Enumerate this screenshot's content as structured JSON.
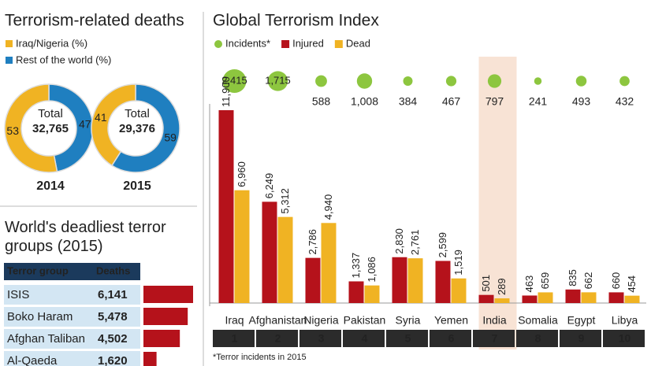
{
  "chart_data": [
    {
      "type": "donut",
      "title": "Terrorism-related deaths",
      "categories": [
        "Iraq/Nigeria (%)",
        "Rest of the world (%)"
      ],
      "colors": [
        "#f0b323",
        "#1f7fc0"
      ],
      "pies": [
        {
          "year": "2014",
          "total_text": "Total",
          "total": "32,765",
          "values": [
            53,
            47
          ]
        },
        {
          "year": "2015",
          "total_text": "Total",
          "total": "29,376",
          "values": [
            41,
            59
          ]
        }
      ]
    },
    {
      "type": "hbar",
      "title": "World's deadliest terror groups (2015)",
      "headers": [
        "Terror group",
        "Deaths"
      ],
      "categories": [
        "ISIS",
        "Boko Haram",
        "Afghan Taliban",
        "Al-Qaeda"
      ],
      "values": [
        6141,
        5478,
        4502,
        1620
      ],
      "value_labels": [
        "6,141",
        "5,478",
        "4,502",
        "1,620"
      ],
      "color": "#b5121b"
    },
    {
      "type": "index",
      "title": "Global Terrorism Index",
      "categories": [
        "Iraq",
        "Afghanistan",
        "Nigeria",
        "Pakistan",
        "Syria",
        "Yemen",
        "India",
        "Somalia",
        "Egypt",
        "Libya"
      ],
      "ranks": [
        1,
        2,
        3,
        4,
        5,
        6,
        7,
        8,
        9,
        10
      ],
      "highlight_index": 6,
      "series": [
        {
          "name": "Incidents*",
          "color": "#8dc63f",
          "values": [
            2415,
            1715,
            588,
            1008,
            384,
            467,
            797,
            241,
            493,
            432
          ],
          "value_labels": [
            "2,415",
            "1,715",
            "588",
            "1,008",
            "384",
            "467",
            "797",
            "241",
            "493",
            "432"
          ]
        },
        {
          "name": "Injured",
          "color": "#b5121b",
          "values": [
            11900,
            6249,
            2786,
            1337,
            2830,
            2599,
            501,
            463,
            835,
            660
          ],
          "value_labels": [
            "11,900",
            "6,249",
            "2,786",
            "1,337",
            "2,830",
            "2,599",
            "501",
            "463",
            "835",
            "660"
          ]
        },
        {
          "name": "Dead",
          "color": "#f0b323",
          "values": [
            6960,
            5312,
            4940,
            1086,
            2761,
            1519,
            289,
            659,
            662,
            454
          ],
          "value_labels": [
            "6,960",
            "5,312",
            "4,940",
            "1,086",
            "2,761",
            "1,519",
            "289",
            "659",
            "662",
            "454"
          ]
        }
      ],
      "footnote": "*Terror incidents in 2015"
    }
  ]
}
